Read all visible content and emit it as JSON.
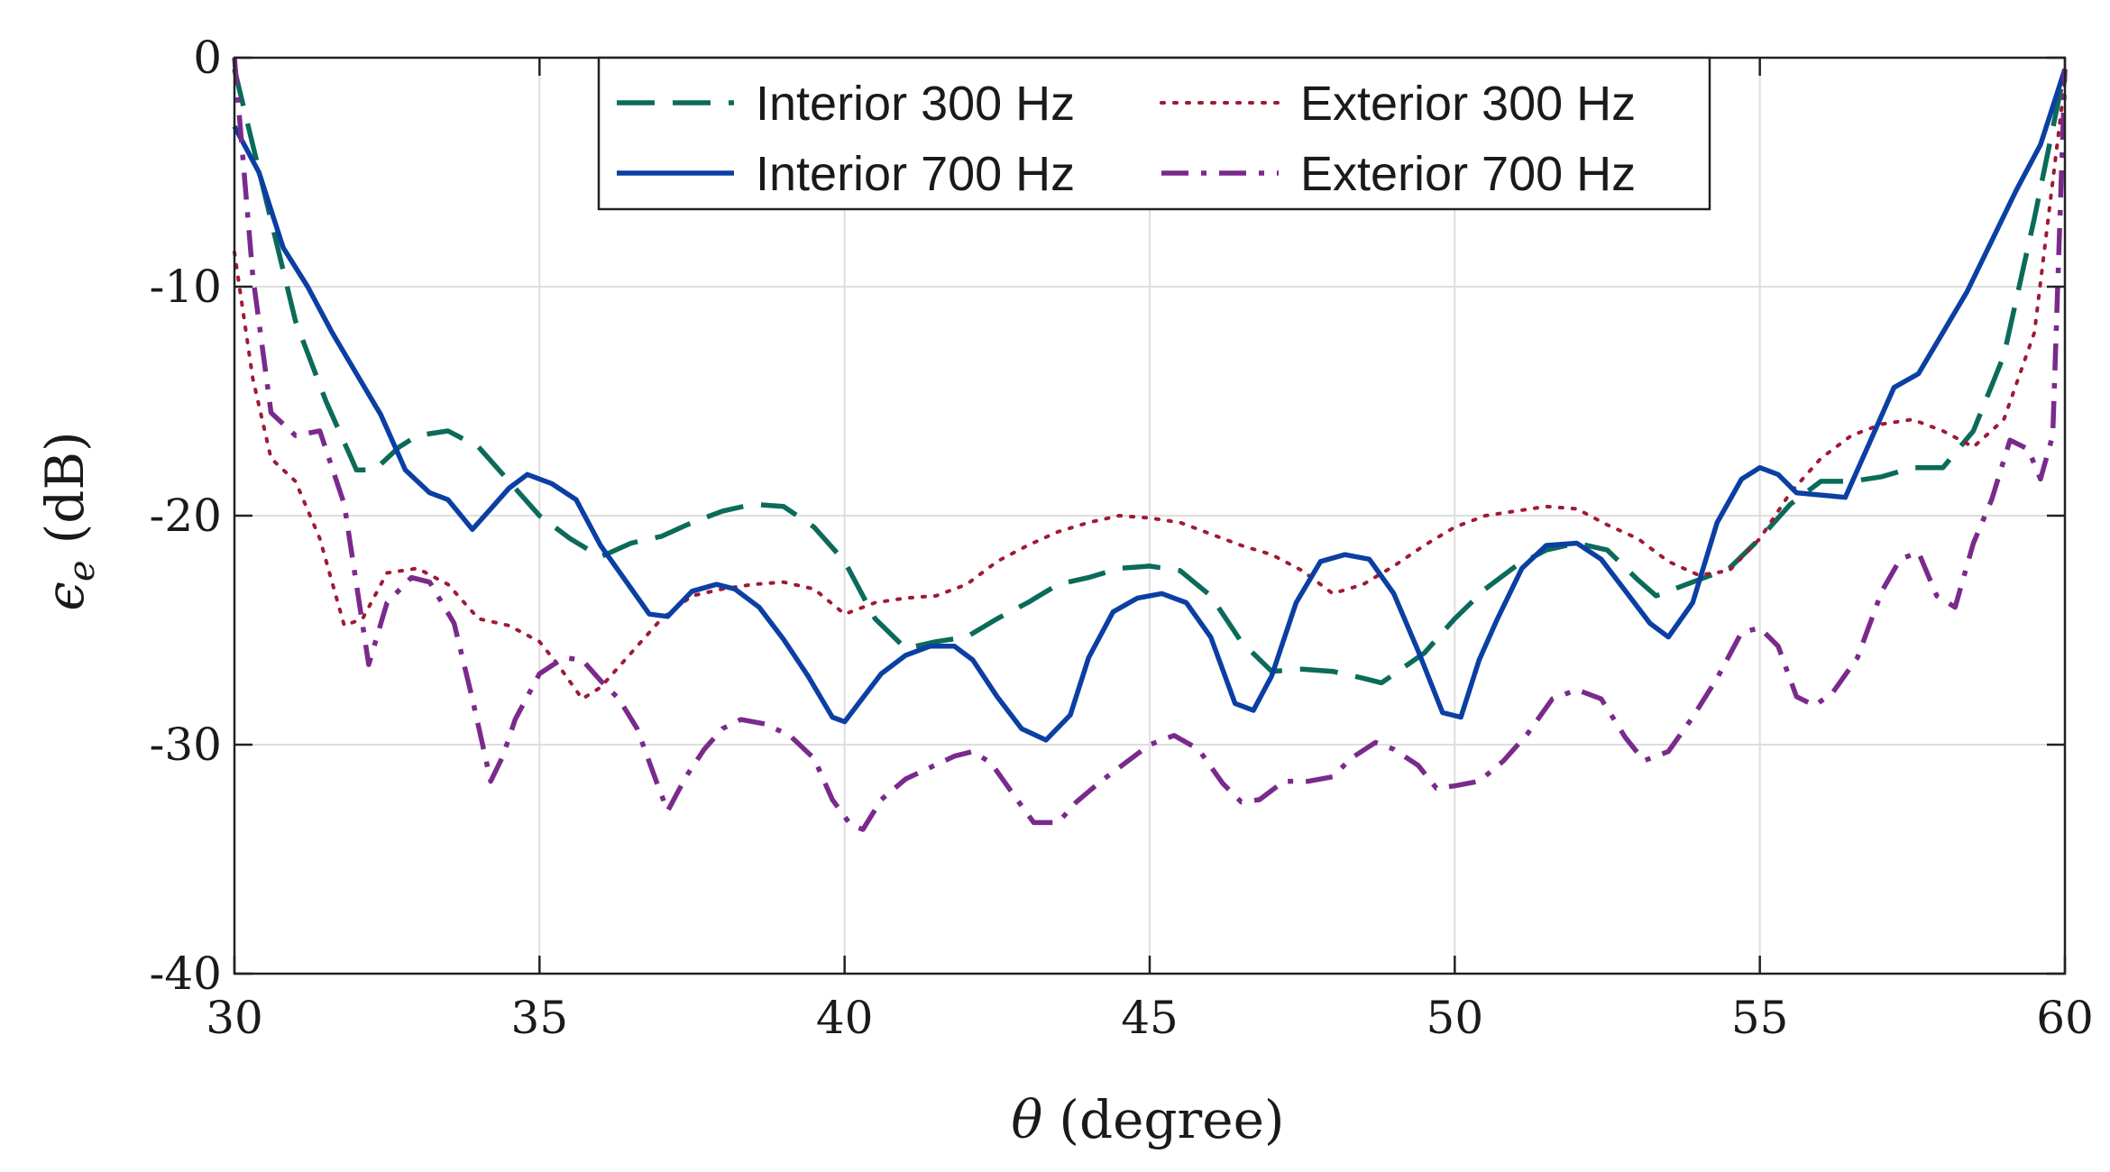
{
  "chart_data": {
    "type": "line",
    "title": "",
    "xlabel": "θ (degree)",
    "ylabel": "ε_e (dB)",
    "ylabel_symbol": "ϵ",
    "ylabel_subscript": "e",
    "ylabel_unit": "(dB)",
    "xlabel_symbol": "θ",
    "xlabel_unit": "(degree)",
    "xlim": [
      30,
      60
    ],
    "ylim": [
      -40,
      0
    ],
    "xticks": [
      30,
      35,
      40,
      45,
      50,
      55,
      60
    ],
    "yticks": [
      0,
      -10,
      -20,
      -30,
      -40
    ],
    "ytick_labels": [
      "0",
      "-10",
      "-20",
      "-30",
      "-40"
    ],
    "grid": true,
    "legend_position": "top-center",
    "series": [
      {
        "name": "Interior 300 Hz",
        "color": "#0b6b5a",
        "style": "dashed",
        "x": [
          30,
          30.5,
          31,
          31.5,
          32,
          32.3,
          32.7,
          33,
          33.5,
          34,
          34.5,
          35,
          35.5,
          36,
          36.5,
          37,
          37.5,
          38,
          38.5,
          39,
          39.5,
          40,
          40.5,
          41,
          41.5,
          42,
          42.5,
          43,
          43.5,
          44,
          44.5,
          45,
          45.5,
          46,
          46.5,
          47,
          47.5,
          48,
          48.5,
          48.8,
          49.5,
          50,
          50.5,
          51,
          51.5,
          52,
          52.5,
          53,
          53.3,
          54,
          54.5,
          55,
          55.5,
          56,
          56.5,
          57,
          57.5,
          58,
          58.5,
          59,
          59.5,
          60
        ],
        "values": [
          -0.5,
          -6,
          -11.5,
          -15,
          -18,
          -18,
          -17,
          -16.5,
          -16.3,
          -17,
          -18.5,
          -20,
          -21,
          -21.8,
          -21.2,
          -20.9,
          -20.3,
          -19.8,
          -19.5,
          -19.6,
          -20.5,
          -22,
          -24.5,
          -25.8,
          -25.5,
          -25.3,
          -24.5,
          -23.8,
          -23,
          -22.7,
          -22.3,
          -22.2,
          -22.4,
          -23.5,
          -25.5,
          -26.8,
          -26.7,
          -26.8,
          -27.1,
          -27.3,
          -26,
          -24.5,
          -23.2,
          -22.2,
          -21.5,
          -21.2,
          -21.5,
          -22.8,
          -23.5,
          -22.8,
          -22.3,
          -21,
          -19.5,
          -18.5,
          -18.5,
          -18.3,
          -17.9,
          -17.9,
          -16.3,
          -13,
          -7,
          -0.5
        ]
      },
      {
        "name": "Exterior 300 Hz",
        "color": "#a01a34",
        "style": "dotted",
        "x": [
          30,
          30.3,
          30.6,
          31,
          31.4,
          31.8,
          32.1,
          32.5,
          33,
          33.5,
          34,
          34.5,
          35,
          35.3,
          35.7,
          36,
          36.5,
          37,
          37.5,
          38,
          38.5,
          39,
          39.5,
          40,
          40.5,
          41,
          41.5,
          42,
          42.5,
          43,
          43.5,
          44,
          44.5,
          45,
          45.5,
          46,
          46.5,
          47,
          47.5,
          48,
          48.5,
          49,
          49.5,
          50,
          50.5,
          51,
          51.5,
          52,
          52.5,
          53,
          53.5,
          54,
          54.5,
          55,
          55.5,
          56,
          56.5,
          57,
          57.5,
          58,
          58.5,
          59,
          59.5,
          60
        ],
        "values": [
          -8.5,
          -14,
          -17.5,
          -18.5,
          -21,
          -24.8,
          -24.5,
          -22.5,
          -22.3,
          -23,
          -24.5,
          -24.8,
          -25.5,
          -26.5,
          -28,
          -27.5,
          -26,
          -24.5,
          -23.5,
          -23.2,
          -23.0,
          -22.9,
          -23.2,
          -24.3,
          -23.8,
          -23.6,
          -23.5,
          -23.0,
          -22.0,
          -21.3,
          -20.7,
          -20.3,
          -20.0,
          -20.1,
          -20.3,
          -20.8,
          -21.3,
          -21.7,
          -22.4,
          -23.4,
          -23.0,
          -22.2,
          -21.3,
          -20.5,
          -20.0,
          -19.8,
          -19.6,
          -19.7,
          -20.4,
          -21.0,
          -22.0,
          -22.6,
          -22.4,
          -21.0,
          -19.0,
          -17.5,
          -16.5,
          -16.0,
          -15.8,
          -16.3,
          -17.0,
          -15.8,
          -12.0,
          -1.0
        ]
      },
      {
        "name": "Interior 700 Hz",
        "color": "#0b3fa3",
        "style": "solid",
        "x": [
          30,
          30.4,
          30.8,
          31.2,
          31.6,
          32,
          32.4,
          32.8,
          33.2,
          33.5,
          33.9,
          34.2,
          34.5,
          34.8,
          35.2,
          35.6,
          36,
          36.4,
          36.8,
          37.1,
          37.5,
          37.9,
          38.2,
          38.6,
          39,
          39.4,
          39.8,
          40,
          40.2,
          40.6,
          41,
          41.4,
          41.8,
          42.1,
          42.5,
          42.9,
          43.3,
          43.7,
          44,
          44.4,
          44.8,
          45.2,
          45.6,
          46,
          46.4,
          46.7,
          47,
          47.4,
          47.8,
          48.2,
          48.6,
          49,
          49.4,
          49.8,
          50.1,
          50.4,
          50.7,
          51.1,
          51.5,
          52,
          52.4,
          52.8,
          53.2,
          53.5,
          53.9,
          54.3,
          54.7,
          55,
          55.3,
          55.6,
          56,
          56.4,
          56.8,
          57.2,
          57.6,
          58,
          58.4,
          58.8,
          59.2,
          59.6,
          60
        ],
        "values": [
          -3,
          -5,
          -8.3,
          -10,
          -12,
          -13.8,
          -15.6,
          -18,
          -19,
          -19.3,
          -20.6,
          -19.7,
          -18.8,
          -18.2,
          -18.6,
          -19.3,
          -21.3,
          -22.8,
          -24.3,
          -24.4,
          -23.3,
          -23.0,
          -23.2,
          -24.0,
          -25.4,
          -27.0,
          -28.8,
          -29.0,
          -28.3,
          -26.9,
          -26.1,
          -25.7,
          -25.7,
          -26.3,
          -27.9,
          -29.3,
          -29.8,
          -28.7,
          -26.2,
          -24.2,
          -23.6,
          -23.4,
          -23.8,
          -25.3,
          -28.2,
          -28.5,
          -27.0,
          -23.8,
          -22.0,
          -21.7,
          -21.9,
          -23.4,
          -25.9,
          -28.6,
          -28.8,
          -26.3,
          -24.5,
          -22.3,
          -21.3,
          -21.2,
          -21.9,
          -23.3,
          -24.7,
          -25.3,
          -23.8,
          -20.3,
          -18.4,
          -17.9,
          -18.2,
          -19.0,
          -19.1,
          -19.2,
          -16.8,
          -14.4,
          -13.8,
          -12.0,
          -10.2,
          -8.0,
          -5.8,
          -3.8,
          -0.5
        ]
      },
      {
        "name": "Exterior 700 Hz",
        "color": "#7a2a8c",
        "style": "dashdot",
        "x": [
          30,
          30.3,
          30.6,
          31,
          31.4,
          31.8,
          32,
          32.2,
          32.5,
          32.9,
          33.2,
          33.6,
          33.9,
          34.2,
          34.4,
          34.6,
          35,
          35.4,
          35.7,
          36,
          36.3,
          36.6,
          36.9,
          37.1,
          37.4,
          37.7,
          38,
          38.3,
          38.7,
          39.1,
          39.5,
          39.8,
          40.1,
          40.3,
          40.6,
          41,
          41.4,
          41.8,
          42.1,
          42.4,
          42.8,
          43.1,
          43.5,
          43.8,
          44.2,
          44.6,
          45,
          45.4,
          45.8,
          46.2,
          46.5,
          46.8,
          47.2,
          47.6,
          48,
          48.3,
          48.7,
          49,
          49.4,
          49.7,
          50,
          50.4,
          50.8,
          51.2,
          51.6,
          52,
          52.4,
          52.8,
          53.1,
          53.5,
          53.9,
          54.3,
          54.7,
          55,
          55.3,
          55.6,
          55.9,
          56.2,
          56.6,
          57,
          57.3,
          57.6,
          57.9,
          58.2,
          58.5,
          58.8,
          59.1,
          59.4,
          59.6,
          59.8,
          60
        ],
        "values": [
          0,
          -9.5,
          -15.5,
          -16.5,
          -16.3,
          -19.5,
          -23.0,
          -26.5,
          -23.8,
          -22.7,
          -22.9,
          -24.7,
          -28.0,
          -31.6,
          -30.5,
          -28.9,
          -26.9,
          -26.2,
          -26.3,
          -27.2,
          -28.0,
          -29.3,
          -31.5,
          -32.9,
          -31.4,
          -30.2,
          -29.3,
          -28.9,
          -29.1,
          -29.6,
          -30.6,
          -32.4,
          -33.5,
          -33.7,
          -32.4,
          -31.5,
          -31.0,
          -30.5,
          -30.3,
          -30.8,
          -32.3,
          -33.4,
          -33.4,
          -32.5,
          -31.6,
          -30.8,
          -30.0,
          -29.6,
          -30.2,
          -31.7,
          -32.5,
          -32.4,
          -31.6,
          -31.6,
          -31.4,
          -30.6,
          -29.9,
          -30.2,
          -30.9,
          -31.9,
          -31.8,
          -31.6,
          -30.7,
          -29.5,
          -28.0,
          -27.6,
          -28.0,
          -29.7,
          -30.7,
          -30.3,
          -28.8,
          -27.1,
          -25.1,
          -24.9,
          -25.7,
          -27.9,
          -28.3,
          -27.7,
          -26.2,
          -23.3,
          -21.9,
          -21.6,
          -23.5,
          -24.0,
          -21.2,
          -19.3,
          -16.7,
          -17.1,
          -18.4,
          -16.5,
          -0.5
        ]
      }
    ]
  }
}
